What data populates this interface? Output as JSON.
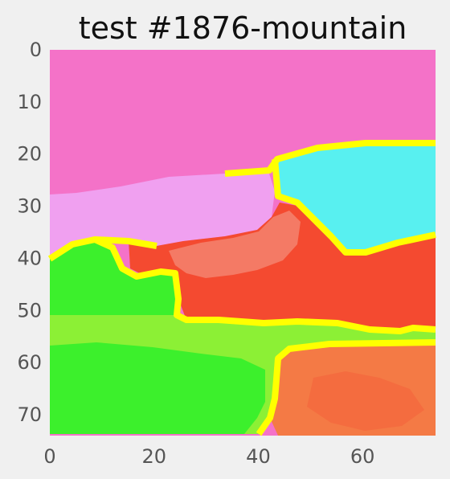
{
  "figure": {
    "title": "test #1876-mountain"
  },
  "chart_data": {
    "type": "heatmap",
    "title": "test #1876-mountain",
    "xlabel": "",
    "ylabel": "",
    "xlim": [
      0,
      74
    ],
    "ylim": [
      74,
      0
    ],
    "grid": false,
    "x_ticks": [
      0,
      20,
      40,
      60
    ],
    "y_ticks": [
      0,
      10,
      20,
      30,
      40,
      50,
      60,
      70
    ],
    "x_tick_labels": [
      "0",
      "20",
      "40",
      "60"
    ],
    "y_tick_labels": [
      "0",
      "10",
      "20",
      "30",
      "40",
      "50",
      "60",
      "70"
    ],
    "segments_description": [
      {
        "label": "sky",
        "color": "#f472c8"
      },
      {
        "label": "cloud",
        "color": "#f0a0f0"
      },
      {
        "label": "lake",
        "color": "#58f0f0"
      },
      {
        "label": "mountain",
        "color": "#f44a30"
      },
      {
        "label": "rock",
        "color": "#f47a45"
      },
      {
        "label": "tree",
        "color": "#3cf02c"
      },
      {
        "label": "grass",
        "color": "#8cf035"
      },
      {
        "label": "boundary",
        "color": "#ffff00"
      }
    ]
  }
}
